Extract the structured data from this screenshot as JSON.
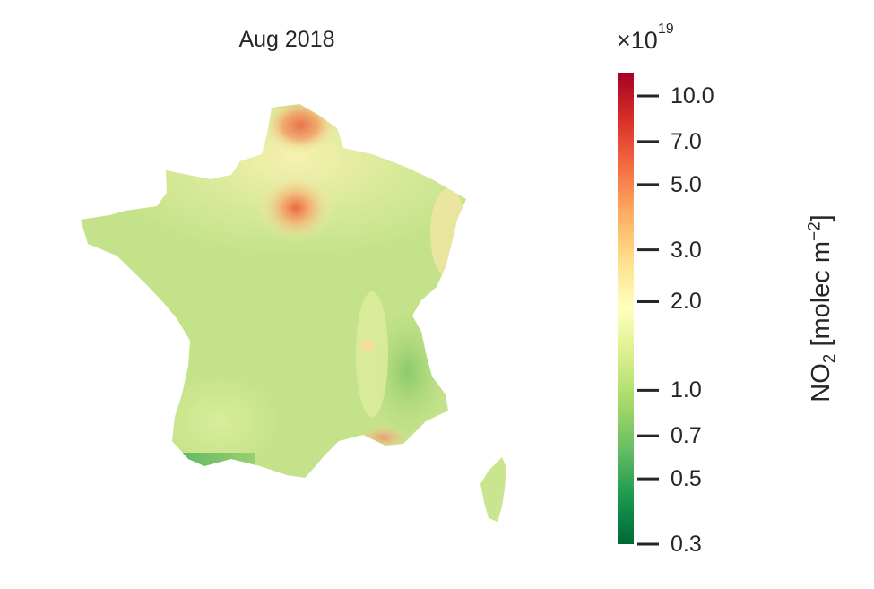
{
  "title": "Aug 2018",
  "colorbar": {
    "exponent_base": "×10",
    "exponent_power": "19",
    "label_prefix": "NO",
    "label_sub": "2",
    "label_mid": " [molec m",
    "label_sup": "−2",
    "label_suffix": "]",
    "scale": "log",
    "range": [
      0.3,
      12.0
    ],
    "ticks": [
      {
        "value": 10.0,
        "label": "10.0"
      },
      {
        "value": 7.0,
        "label": "7.0"
      },
      {
        "value": 5.0,
        "label": "5.0"
      },
      {
        "value": 3.0,
        "label": "3.0"
      },
      {
        "value": 2.0,
        "label": "2.0"
      },
      {
        "value": 1.0,
        "label": "1.0"
      },
      {
        "value": 0.7,
        "label": "0.7"
      },
      {
        "value": 0.5,
        "label": "0.5"
      },
      {
        "value": 0.3,
        "label": "0.3"
      }
    ],
    "colormap": "RdYlGn_r",
    "colors": [
      "#006837",
      "#1a9850",
      "#66bd63",
      "#a6d96a",
      "#d9ef8b",
      "#ffffbf",
      "#fee08b",
      "#fdae61",
      "#f46d43",
      "#d73027",
      "#a50026"
    ]
  },
  "map": {
    "region": "France",
    "colors": {
      "base": "#c4e28a",
      "south_west": "#d3ea93",
      "north": "#f1f5b2",
      "paris": "#ef7a4a",
      "lille": "#ec8756",
      "alps": "#a9d676",
      "marseille": "#f0a877",
      "corsica": "#c9e58f"
    }
  }
}
